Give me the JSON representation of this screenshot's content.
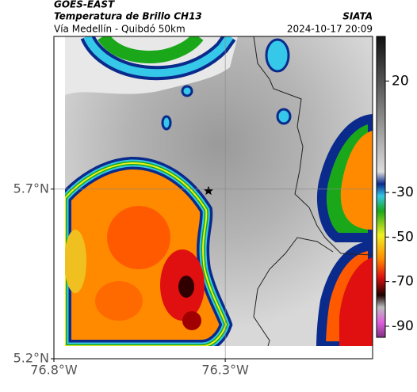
{
  "header": {
    "title": "GOES-EAST",
    "subtitle": "Temperatura de Brillo CH13",
    "route": "Vía Medellín - Quibdó 50km",
    "source": "SIATA",
    "timestamp": "2024-10-17 20:09"
  },
  "map": {
    "xlim": [
      -76.8,
      -75.87
    ],
    "ylim": [
      5.2,
      6.15
    ],
    "xticks": [
      {
        "value": -76.8,
        "label": "76.8°W"
      },
      {
        "value": -76.3,
        "label": "76.3°W"
      }
    ],
    "yticks": [
      {
        "value": 5.2,
        "label": "5.2°N"
      },
      {
        "value": 5.7,
        "label": "5.7°N"
      }
    ],
    "grid": true
  },
  "colorbar": {
    "lim": [
      40,
      -95
    ],
    "ticks": [
      20,
      -30,
      -50,
      -70,
      -90
    ]
  }
}
